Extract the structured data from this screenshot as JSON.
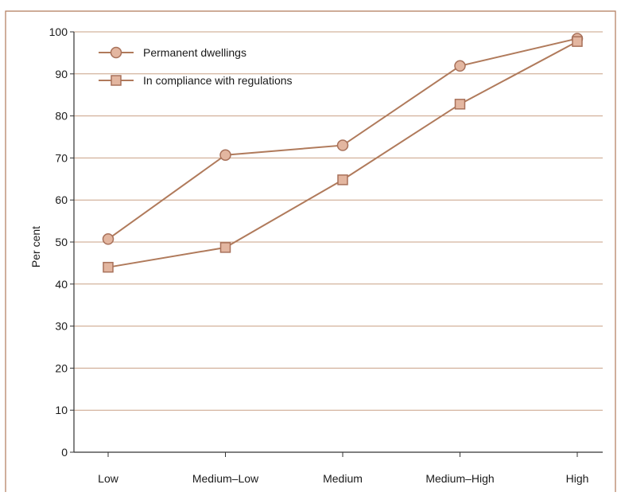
{
  "chart_data": {
    "type": "line",
    "title": "",
    "xlabel": "",
    "ylabel": "Per cent",
    "ylim": [
      0,
      100
    ],
    "yticks": [
      0,
      10,
      20,
      30,
      40,
      50,
      60,
      70,
      80,
      90,
      100
    ],
    "categories": [
      "Low",
      "Medium–Low",
      "Medium",
      "Medium–High",
      "High"
    ],
    "grid": true,
    "legend_position": "top-left",
    "series": [
      {
        "name": "Permanent dwellings",
        "marker": "circle",
        "values": [
          50.7,
          70.7,
          73.0,
          91.9,
          98.4
        ]
      },
      {
        "name": "In compliance with regulations",
        "marker": "square",
        "values": [
          44.0,
          48.7,
          64.8,
          82.8,
          97.7
        ]
      }
    ],
    "colors": {
      "frame": "#b07a5b",
      "grid": "#c9a185",
      "line": "#b07a5b",
      "marker_fill": "#e3b6a0",
      "marker_stroke": "#a8715a",
      "axis": "#333333"
    }
  }
}
